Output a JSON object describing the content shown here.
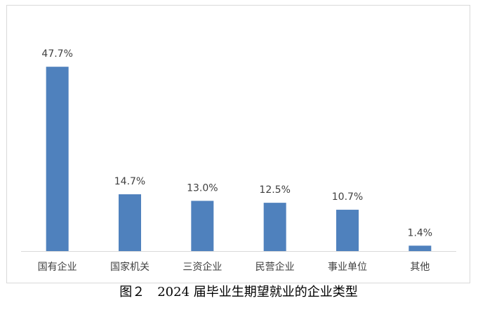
{
  "chart_data": {
    "type": "bar",
    "caption": "图２　2024 届毕业生期望就业的企业类型",
    "categories": [
      "国有企业",
      "国家机关",
      "三资企业",
      "民营企业",
      "事业单位",
      "其他"
    ],
    "values": [
      47.7,
      14.7,
      13.0,
      12.5,
      10.7,
      1.4
    ],
    "value_labels": [
      "47.7%",
      "14.7%",
      "13.0%",
      "12.5%",
      "10.7%",
      "1.4%"
    ],
    "color": "#4f81bd"
  }
}
